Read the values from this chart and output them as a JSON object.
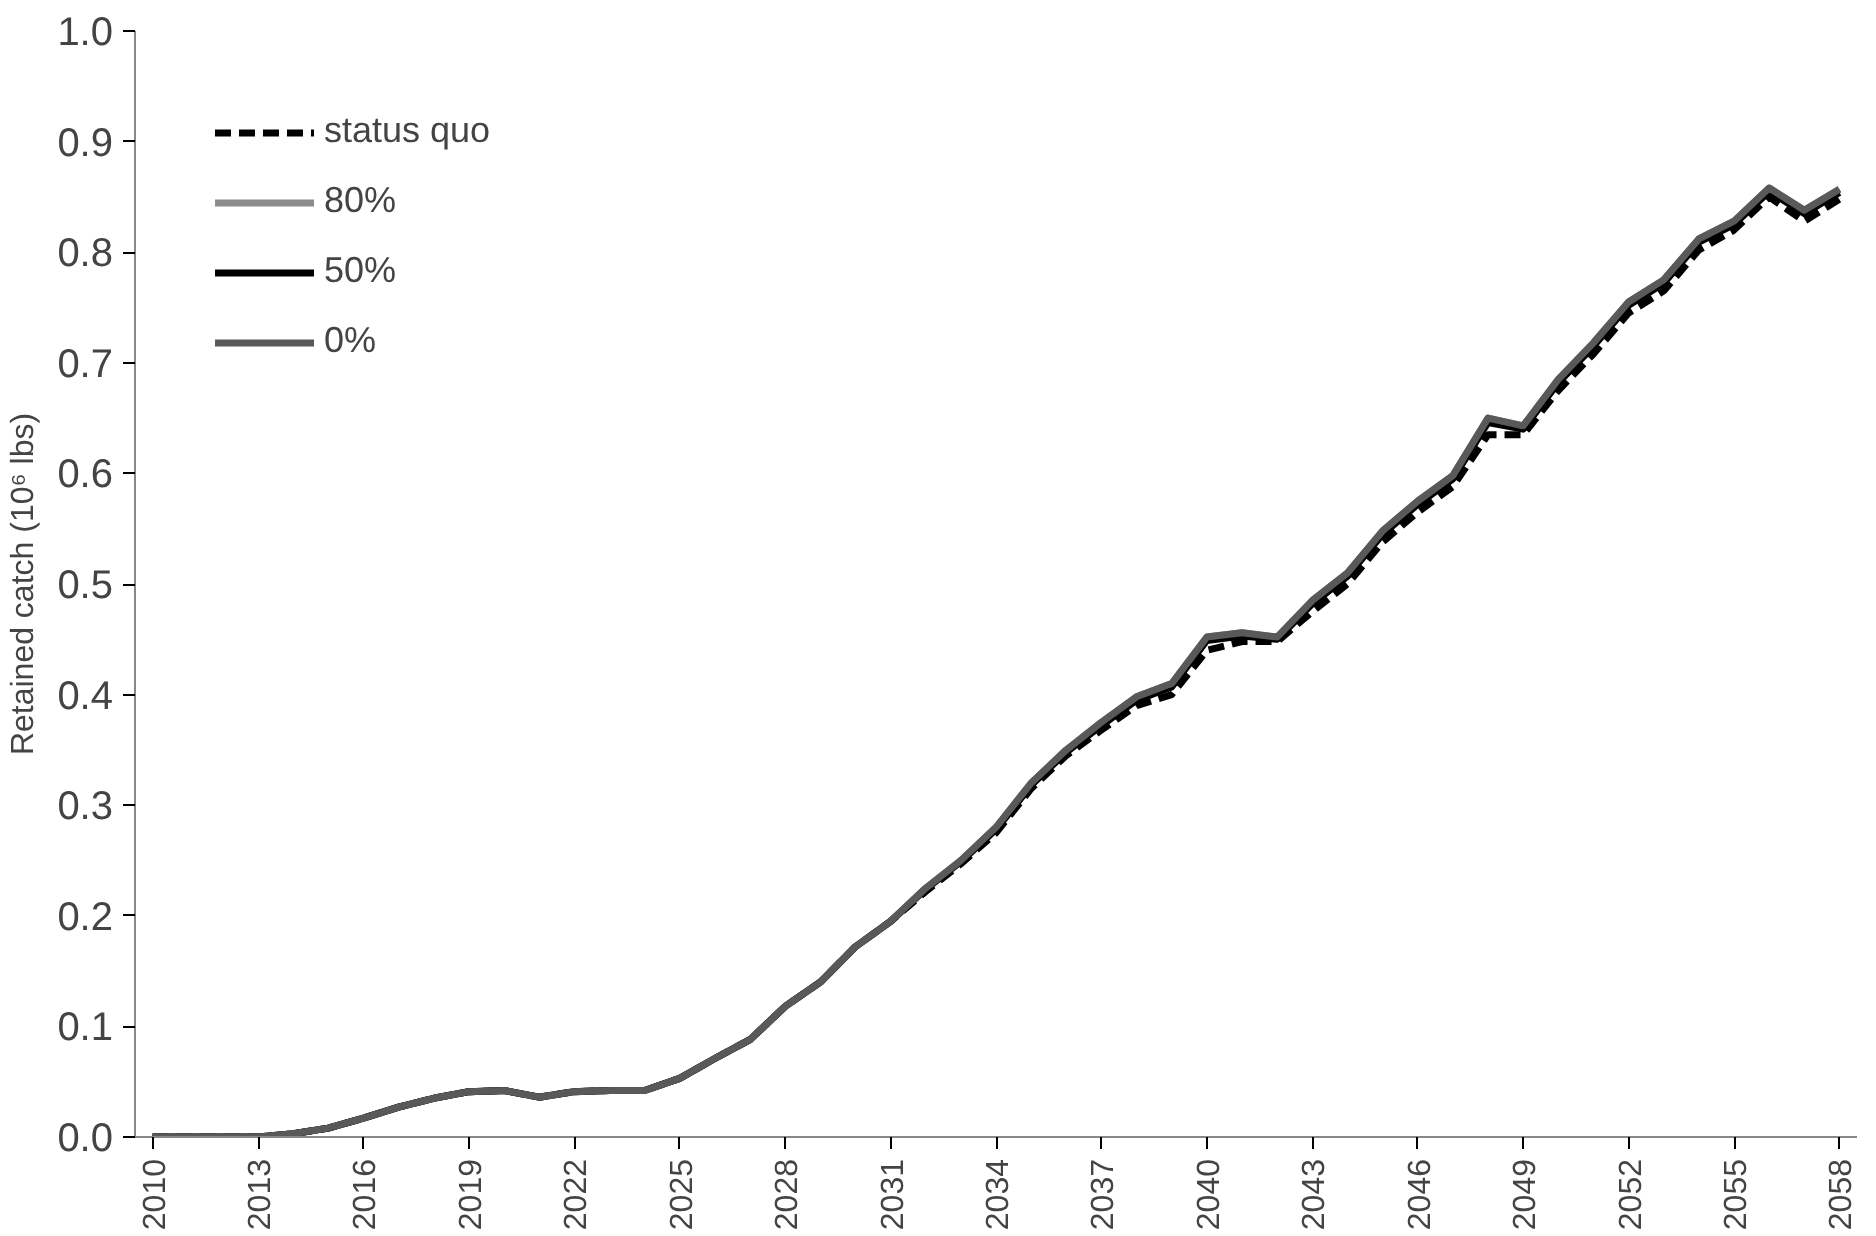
{
  "chart_data": {
    "type": "line",
    "ylabel": "Retained catch (10⁶ lbs)",
    "categories": [
      "2010",
      null,
      null,
      "2013",
      null,
      null,
      "2016",
      null,
      null,
      "2019",
      null,
      null,
      "2022",
      null,
      null,
      "2025",
      null,
      null,
      "2028",
      null,
      null,
      "2031",
      null,
      null,
      "2034",
      null,
      null,
      "2037",
      null,
      null,
      "2040",
      null,
      null,
      "2043",
      null,
      null,
      "2046",
      null,
      null,
      "2049",
      null,
      null,
      "2052",
      null,
      null,
      "2055",
      null,
      null,
      "2058"
    ],
    "series": [
      {
        "name": "status quo",
        "color": "#000000",
        "line_style": "dashed",
        "values": [
          0,
          0,
          0,
          0,
          0.003,
          0.008,
          0.017,
          0.027,
          0.035,
          0.041,
          0.042,
          0.036,
          0.041,
          0.042,
          0.042,
          0.053,
          0.071,
          0.088,
          0.118,
          0.14,
          0.172,
          0.195,
          0.222,
          0.247,
          0.275,
          0.315,
          0.345,
          0.368,
          0.39,
          0.4,
          0.44,
          0.448,
          0.448,
          0.475,
          0.5,
          0.538,
          0.565,
          0.588,
          0.635,
          0.635,
          0.675,
          0.708,
          0.745,
          0.765,
          0.802,
          0.82,
          0.85,
          0.828,
          0.848
        ]
      },
      {
        "name": "80%",
        "color": "#8c8c8c",
        "line_style": "solid",
        "values": [
          0,
          0,
          0,
          0,
          0.003,
          0.008,
          0.017,
          0.027,
          0.035,
          0.041,
          0.042,
          0.036,
          0.041,
          0.042,
          0.042,
          0.053,
          0.071,
          0.088,
          0.118,
          0.14,
          0.172,
          0.195,
          0.225,
          0.25,
          0.28,
          0.32,
          0.35,
          0.375,
          0.398,
          0.41,
          0.452,
          0.456,
          0.452,
          0.485,
          0.51,
          0.548,
          0.575,
          0.598,
          0.65,
          0.643,
          0.685,
          0.718,
          0.755,
          0.775,
          0.812,
          0.828,
          0.858,
          0.838,
          0.857
        ]
      },
      {
        "name": "50%",
        "color": "#000000",
        "line_style": "solid",
        "values": [
          0,
          0,
          0,
          0,
          0.003,
          0.008,
          0.017,
          0.027,
          0.035,
          0.041,
          0.042,
          0.036,
          0.041,
          0.042,
          0.042,
          0.053,
          0.071,
          0.088,
          0.118,
          0.14,
          0.172,
          0.195,
          0.224,
          0.249,
          0.278,
          0.318,
          0.348,
          0.372,
          0.395,
          0.407,
          0.449,
          0.453,
          0.45,
          0.482,
          0.507,
          0.545,
          0.572,
          0.595,
          0.646,
          0.64,
          0.682,
          0.715,
          0.752,
          0.772,
          0.809,
          0.825,
          0.855,
          0.835,
          0.854
        ]
      },
      {
        "name": "0%",
        "color": "#595959",
        "line_style": "solid",
        "values": [
          0,
          0,
          0,
          0,
          0.003,
          0.008,
          0.017,
          0.027,
          0.035,
          0.041,
          0.042,
          0.036,
          0.041,
          0.042,
          0.042,
          0.053,
          0.071,
          0.088,
          0.118,
          0.14,
          0.172,
          0.195,
          0.225,
          0.25,
          0.28,
          0.32,
          0.35,
          0.375,
          0.398,
          0.41,
          0.452,
          0.456,
          0.452,
          0.485,
          0.51,
          0.548,
          0.575,
          0.598,
          0.65,
          0.643,
          0.685,
          0.718,
          0.755,
          0.775,
          0.812,
          0.828,
          0.858,
          0.838,
          0.857
        ]
      }
    ],
    "ylim": [
      0,
      1.0
    ],
    "yticks": [
      {
        "value": 0,
        "label": "0.0"
      },
      0.1,
      0.2,
      0.3,
      0.4,
      0.5,
      0.6,
      0.7,
      0.8,
      0.9,
      {
        "value": 1,
        "label": "1.0"
      }
    ],
    "grid": false,
    "legend": "top left"
  }
}
